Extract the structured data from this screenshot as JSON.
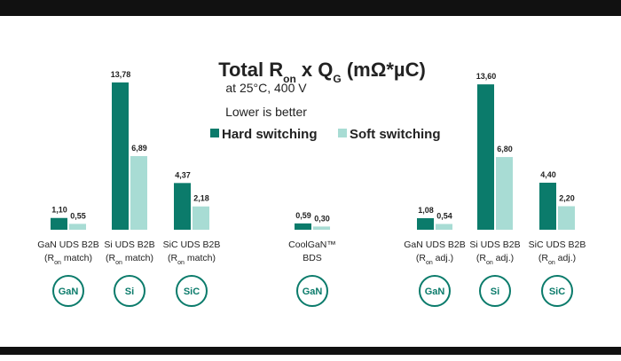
{
  "chart_data": {
    "type": "bar",
    "title": [
      "Total R",
      "on",
      " x Q",
      "G",
      " (mΩ*µC)"
    ],
    "subtitle": "at 25°C, 400 V",
    "note": "Lower is better",
    "categories": [
      [
        "GaN UDS B2B",
        [
          "(R",
          "on",
          " match)"
        ]
      ],
      [
        "Si UDS B2B",
        [
          "(R",
          "on",
          " match)"
        ]
      ],
      [
        "SiC UDS B2B",
        [
          "(R",
          "on",
          " match)"
        ]
      ],
      [
        "CoolGaN™",
        [
          "BDS"
        ]
      ],
      [
        "GaN UDS B2B",
        [
          "(R",
          "on",
          " adj.)"
        ]
      ],
      [
        "Si UDS B2B",
        [
          "(R",
          "on",
          " adj.)"
        ]
      ],
      [
        "SiC UDS B2B",
        [
          "(R",
          "on",
          " adj.)"
        ]
      ]
    ],
    "badges": [
      "GaN",
      "Si",
      "SiC",
      "GaN",
      "GaN",
      "Si",
      "SiC"
    ],
    "series": [
      {
        "name": "Hard switching",
        "color": "#0b7b6b",
        "values": [
          1.1,
          13.78,
          4.37,
          0.59,
          1.08,
          13.6,
          4.4
        ],
        "value_labels": [
          "1,10",
          "13,78",
          "4,37",
          "0,59",
          "1,08",
          "13,60",
          "4,40"
        ]
      },
      {
        "name": "Soft switching",
        "color": "#a8dcd4",
        "values": [
          0.55,
          6.89,
          2.18,
          0.3,
          0.54,
          6.8,
          2.2
        ],
        "value_labels": [
          "0,55",
          "6,89",
          "2,18",
          "0,30",
          "0,54",
          "6,80",
          "2,20"
        ]
      }
    ]
  }
}
